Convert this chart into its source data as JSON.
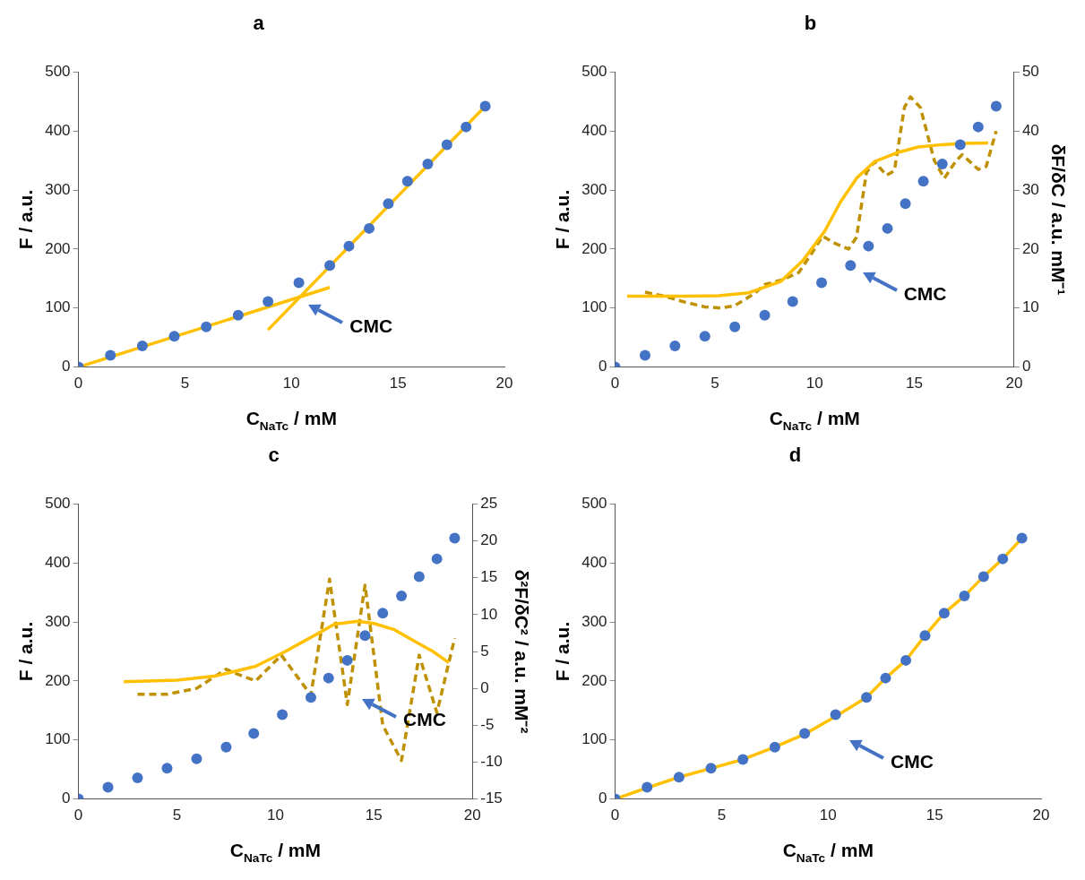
{
  "chart_data": [
    {
      "type": "scatter",
      "title": "a",
      "xlabel": "C$_{NaTc}$ / mM",
      "ylabel": "F / a.u.",
      "xlim": [
        0,
        20
      ],
      "xticks": [
        0,
        5,
        10,
        15,
        20
      ],
      "ylim": [
        0,
        500
      ],
      "yticks": [
        0,
        100,
        200,
        300,
        400,
        500
      ],
      "grid": false,
      "legend": false,
      "series": [
        {
          "type": "line",
          "color": "#ffc000",
          "marker": "none",
          "line_style": "solid",
          "x": [
            0,
            11.8
          ],
          "values": [
            0,
            135
          ]
        },
        {
          "type": "line",
          "color": "#ffc000",
          "marker": "none",
          "line_style": "solid",
          "x": [
            8.9,
            19.1
          ],
          "values": [
            63,
            442
          ]
        },
        {
          "type": "scatter",
          "color": "#4472c4",
          "marker": "circle",
          "x": [
            0,
            1.5,
            3,
            4.5,
            6,
            7.5,
            8.9,
            10.35,
            11.8,
            12.7,
            13.65,
            14.55,
            15.45,
            16.4,
            17.3,
            18.2,
            19.1
          ],
          "values": [
            0,
            20,
            36,
            52,
            68,
            88,
            111,
            143,
            172,
            205,
            235,
            277,
            315,
            344,
            377,
            407,
            442
          ]
        }
      ],
      "annotations": [
        "CMC"
      ]
    },
    {
      "type": "scatter",
      "title": "b",
      "xlabel": "C$_{NaTc}$ / mM",
      "ylabel": "F / a.u.",
      "y2label": "δF/δC / a.u. mM⁻¹",
      "xlim": [
        0,
        20
      ],
      "xticks": [
        0,
        5,
        10,
        15,
        20
      ],
      "ylim": [
        0,
        500
      ],
      "yticks": [
        0,
        100,
        200,
        300,
        400,
        500
      ],
      "y2lim": [
        0,
        50
      ],
      "y2ticks": [
        0,
        10,
        20,
        30,
        40,
        50
      ],
      "grid": false,
      "legend": false,
      "series": [
        {
          "type": "line",
          "axis": "y2",
          "color": "#ffc000",
          "marker": "none",
          "line_style": "solid",
          "x": [
            0.6,
            2,
            3.5,
            5.2,
            6.7,
            8.3,
            9.4,
            10.5,
            11.3,
            12.1,
            13,
            14.2,
            15.2,
            16.4,
            17.5,
            18.7
          ],
          "values": [
            12,
            12,
            12,
            12.1,
            12.6,
            14.5,
            18,
            23,
            28,
            32,
            34.8,
            36.4,
            37.3,
            37.7,
            37.9,
            38
          ]
        },
        {
          "type": "line",
          "axis": "y2",
          "color": "#bf9000",
          "marker": "none",
          "line_style": "dashed",
          "x": [
            1.5,
            2.5,
            3.5,
            4.5,
            5.3,
            6,
            7,
            7.5,
            8.3,
            9.2,
            9.8,
            10.4,
            11,
            11.7,
            12.1,
            12.6,
            13,
            13.6,
            14,
            14.5,
            14.8,
            15.3,
            16,
            16.5,
            17.1,
            17.4,
            18.2,
            18.6,
            19.1
          ],
          "values": [
            12.7,
            12,
            11,
            10.2,
            10,
            10.4,
            12.5,
            14,
            14.7,
            16,
            19,
            22.2,
            21,
            20,
            22,
            33,
            34.8,
            32.5,
            33.3,
            44,
            45.8,
            44,
            35,
            32,
            35,
            36,
            33.5,
            34,
            40
          ]
        },
        {
          "type": "scatter",
          "color": "#4472c4",
          "marker": "circle",
          "x": [
            0,
            1.5,
            3,
            4.5,
            6,
            7.5,
            8.9,
            10.35,
            11.8,
            12.7,
            13.65,
            14.55,
            15.45,
            16.4,
            17.3,
            18.2,
            19.1
          ],
          "values": [
            0,
            20,
            36,
            52,
            68,
            88,
            111,
            143,
            172,
            205,
            235,
            277,
            315,
            344,
            377,
            407,
            442
          ]
        }
      ],
      "annotations": [
        "CMC"
      ]
    },
    {
      "type": "scatter",
      "title": "c",
      "xlabel": "C$_{NaTc}$ / mM",
      "ylabel": "F / a.u.",
      "y2label": "δ²F/δC² / a.u. mM⁻²",
      "xlim": [
        0,
        20
      ],
      "xticks": [
        0,
        5,
        10,
        15,
        20
      ],
      "ylim": [
        0,
        500
      ],
      "yticks": [
        0,
        100,
        200,
        300,
        400,
        500
      ],
      "y2lim": [
        -15,
        25
      ],
      "y2ticks": [
        -15,
        -10,
        -5,
        0,
        5,
        10,
        15,
        20,
        25
      ],
      "grid": false,
      "legend": false,
      "series": [
        {
          "type": "line",
          "axis": "y2",
          "color": "#ffc000",
          "marker": "none",
          "line_style": "solid",
          "x": [
            2.3,
            5,
            7,
            9,
            10.5,
            12,
            13,
            14.2,
            15,
            16,
            17,
            18,
            18.8
          ],
          "values": [
            0.9,
            1.1,
            1.7,
            3,
            5,
            7.2,
            8.7,
            9.1,
            8.8,
            8,
            6.5,
            5,
            3.5
          ]
        },
        {
          "type": "line",
          "axis": "y2",
          "color": "#bf9000",
          "marker": "none",
          "line_style": "dashed",
          "x": [
            3,
            4.5,
            6,
            7.5,
            8,
            9,
            10.3,
            11.8,
            12.75,
            13.65,
            14.55,
            15.45,
            16.4,
            17.3,
            18.2,
            19.1
          ],
          "values": [
            -0.8,
            -0.8,
            0,
            2.6,
            2,
            1,
            4.5,
            -0.9,
            14.8,
            -2.2,
            14,
            -5,
            -9.8,
            4.5,
            -3.3,
            6.8
          ]
        },
        {
          "type": "scatter",
          "color": "#4472c4",
          "marker": "circle",
          "x": [
            0,
            1.5,
            3,
            4.5,
            6,
            7.5,
            8.9,
            10.35,
            11.8,
            12.7,
            13.65,
            14.55,
            15.45,
            16.4,
            17.3,
            18.2,
            19.1
          ],
          "values": [
            0,
            20,
            36,
            52,
            68,
            88,
            111,
            143,
            172,
            205,
            235,
            277,
            315,
            344,
            377,
            407,
            442
          ]
        }
      ],
      "annotations": [
        "CMC"
      ]
    },
    {
      "type": "scatter",
      "title": "d",
      "xlabel": "C$_{NaTc}$ / mM",
      "ylabel": "F / a.u.",
      "xlim": [
        0,
        20
      ],
      "xticks": [
        0,
        5,
        10,
        15,
        20
      ],
      "ylim": [
        0,
        500
      ],
      "yticks": [
        0,
        100,
        200,
        300,
        400,
        500
      ],
      "grid": false,
      "legend": false,
      "series": [
        {
          "type": "line",
          "color": "#ffc000",
          "marker": "none",
          "line_style": "solid",
          "x": [
            0,
            1.5,
            3,
            4.5,
            6,
            7.5,
            8.9,
            10.35,
            11.8,
            12.7,
            13.65,
            14.55,
            15.45,
            16.4,
            17.3,
            18.2,
            19.1
          ],
          "values": [
            0,
            19,
            37,
            52,
            67,
            88,
            110,
            140,
            172,
            205,
            235,
            277,
            315,
            344,
            377,
            407,
            442
          ]
        },
        {
          "type": "scatter",
          "color": "#4472c4",
          "marker": "circle",
          "x": [
            0,
            1.5,
            3,
            4.5,
            6,
            7.5,
            8.9,
            10.35,
            11.8,
            12.7,
            13.65,
            14.55,
            15.45,
            16.4,
            17.3,
            18.2,
            19.1
          ],
          "values": [
            0,
            20,
            37,
            52,
            67,
            88,
            111,
            143,
            172,
            205,
            235,
            277,
            315,
            344,
            377,
            407,
            442
          ]
        }
      ],
      "annotations": [
        "CMC"
      ]
    }
  ]
}
